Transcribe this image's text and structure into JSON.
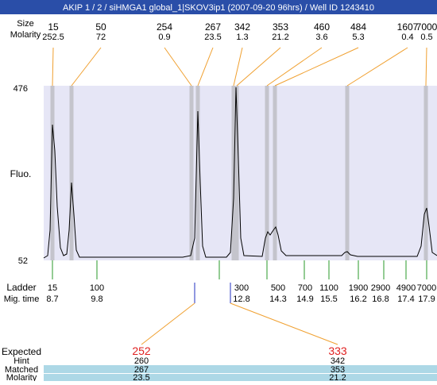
{
  "title": "AKIP 1 / 2 / siHMGA1 global_1|SKOV3ip1 (2007-09-20 96hrs) / Well ID 1243410",
  "peaks": {
    "size_label": "Size",
    "molarity_label": "Molarity",
    "items": [
      {
        "size": "15",
        "molarity": "252.5"
      },
      {
        "size": "50",
        "molarity": "72"
      },
      {
        "size": "254",
        "molarity": "0.9"
      },
      {
        "size": "267",
        "molarity": "23.5"
      },
      {
        "size": "342",
        "molarity": "1.3"
      },
      {
        "size": "353",
        "molarity": "21.2"
      },
      {
        "size": "460",
        "molarity": "3.6"
      },
      {
        "size": "484",
        "molarity": "5.3"
      },
      {
        "size": "1607",
        "molarity": "0.4"
      },
      {
        "size": "7000",
        "molarity": "0.5"
      }
    ]
  },
  "y_axis": {
    "label": "Fluo.",
    "max": "476",
    "min": "52"
  },
  "ladder": {
    "label": "Ladder",
    "mig_label": "Mig. time",
    "items": [
      {
        "size": "15",
        "mig": "8.7"
      },
      {
        "size": "100",
        "mig": "9.8"
      },
      {
        "size": "300",
        "mig": "12.8"
      },
      {
        "size": "500",
        "mig": "14.3"
      },
      {
        "size": "700",
        "mig": "14.9"
      },
      {
        "size": "1100",
        "mig": "15.5"
      },
      {
        "size": "1900",
        "mig": "16.2"
      },
      {
        "size": "2900",
        "mig": "16.8"
      },
      {
        "size": "4900",
        "mig": "17.4"
      },
      {
        "size": "7000",
        "mig": "17.9"
      }
    ]
  },
  "expected": {
    "label": "Expected",
    "hint_label": "Hint",
    "matched_label": "Matched",
    "molarity_label": "Molarity",
    "items": [
      {
        "expected": "252",
        "hint": "260",
        "matched": "267",
        "molarity": "23.5"
      },
      {
        "expected": "333",
        "hint": "342",
        "matched": "353",
        "molarity": "21.2"
      }
    ]
  }
}
